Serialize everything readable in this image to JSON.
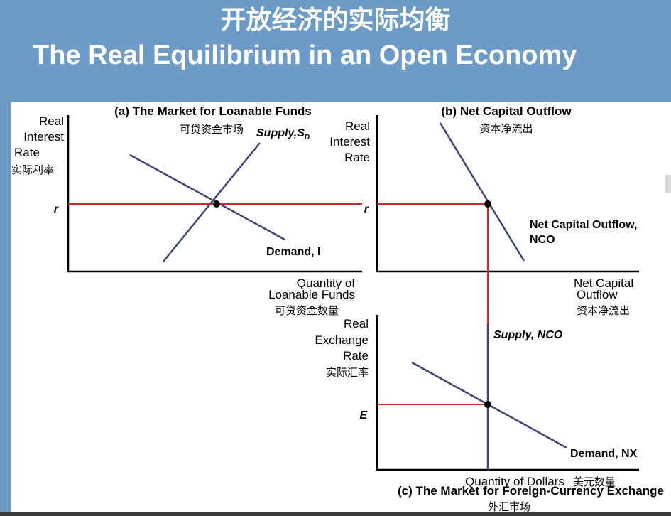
{
  "title": {
    "zh": "开放经济的实际均衡",
    "en": "The Real Equilibrium in an Open Economy"
  },
  "panel_a": {
    "title": "(a) The Market for Loanable Funds",
    "title_zh": "可贷资金市场",
    "ylabel": [
      "Real",
      "Interest",
      "Rate"
    ],
    "ylabel_zh": "实际利率",
    "xlabel": [
      "Quantity of",
      "Loanable Funds"
    ],
    "xlabel_zh": "可贷资金数量",
    "supply_label": "Supply,S",
    "supply_sub": "D",
    "demand_label": "Demand, I",
    "eq_label": "r"
  },
  "panel_b": {
    "title": "(b) Net Capital Outflow",
    "title_zh": "资本净流出",
    "ylabel": [
      "Real",
      "Interest",
      "Rate"
    ],
    "xlabel": [
      "Net Capital",
      "Outflow"
    ],
    "xlabel_zh": "资本净流出",
    "curve_label": [
      "Net Capital Outflow,",
      "NCO"
    ],
    "eq_label": "r"
  },
  "panel_c": {
    "title": "(c) The Market for Foreign-Currency Exchange",
    "title_zh": "外汇市场",
    "ylabel": [
      "Real",
      "Exchange",
      "Rate"
    ],
    "ylabel_zh": "实际汇率",
    "xlabel": "Quantity of Dollars",
    "xlabel_zh": "美元数量",
    "supply_label": "Supply, NCO",
    "demand_label": "Demand, NX",
    "eq_label": "E"
  },
  "colors": {
    "curve": "#3f4477",
    "equilibrium_line": "#e02020",
    "axis": "#000000",
    "header_bg": "#6b9bc6"
  }
}
